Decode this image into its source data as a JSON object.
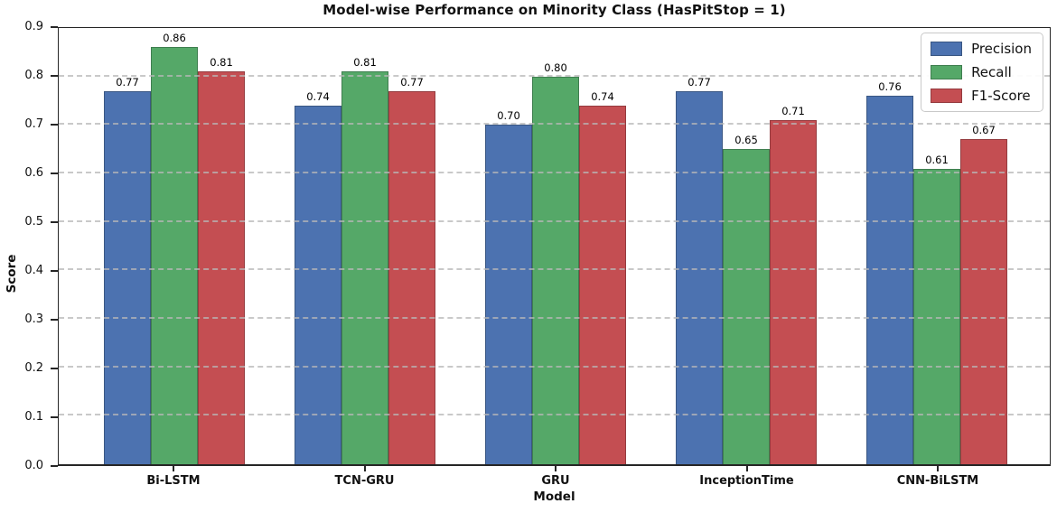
{
  "chart_data": {
    "type": "bar",
    "title": "Model-wise Performance on Minority Class (HasPitStop = 1)",
    "xlabel": "Model",
    "ylabel": "Score",
    "ylim": [
      0.0,
      0.9
    ],
    "ytick_step": 0.1,
    "ytick_format_decimals": 1,
    "value_label_decimals": 2,
    "grid": "horizontal-dashed",
    "grid_color": "#b8b8b8",
    "spine_color": "#262626",
    "legend_position": "upper-right",
    "categories": [
      "Bi-LSTM",
      "TCN-GRU",
      "GRU",
      "InceptionTime",
      "CNN-BiLSTM"
    ],
    "series": [
      {
        "name": "Precision",
        "color": "#4C72B0",
        "edge_color": "#3A5783",
        "values": [
          0.77,
          0.74,
          0.7,
          0.77,
          0.76
        ]
      },
      {
        "name": "Recall",
        "color": "#55A868",
        "edge_color": "#3F7E4F",
        "values": [
          0.86,
          0.81,
          0.8,
          0.65,
          0.61
        ]
      },
      {
        "name": "F1-Score",
        "color": "#C44E52",
        "edge_color": "#943B3F",
        "values": [
          0.81,
          0.77,
          0.74,
          0.71,
          0.67
        ]
      }
    ]
  }
}
